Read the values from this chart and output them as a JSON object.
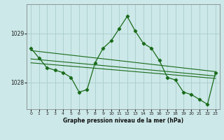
{
  "title": "Graphe pression niveau de la mer (hPa)",
  "background_color": "#cce8e8",
  "grid_color": "#aacccc",
  "line_color": "#1a6b1a",
  "x_labels": [
    "0",
    "1",
    "2",
    "3",
    "4",
    "5",
    "6",
    "7",
    "8",
    "9",
    "10",
    "11",
    "12",
    "13",
    "14",
    "15",
    "16",
    "17",
    "18",
    "19",
    "20",
    "21",
    "22",
    "23"
  ],
  "main_data": [
    1028.7,
    1028.5,
    1028.3,
    1028.25,
    1028.2,
    1028.1,
    1027.8,
    1027.85,
    1028.4,
    1028.7,
    1028.85,
    1029.1,
    1029.35,
    1029.05,
    1028.8,
    1028.7,
    1028.45,
    1028.1,
    1028.05,
    1027.8,
    1027.75,
    1027.65,
    1027.55,
    1028.2
  ],
  "ylim_low": 1027.45,
  "ylim_high": 1029.6,
  "yticks": [
    1028,
    1029
  ],
  "trend_lines": [
    [
      0,
      1028.65,
      23,
      1028.22
    ],
    [
      0,
      1028.48,
      23,
      1028.13
    ],
    [
      0,
      1028.4,
      23,
      1028.08
    ]
  ]
}
